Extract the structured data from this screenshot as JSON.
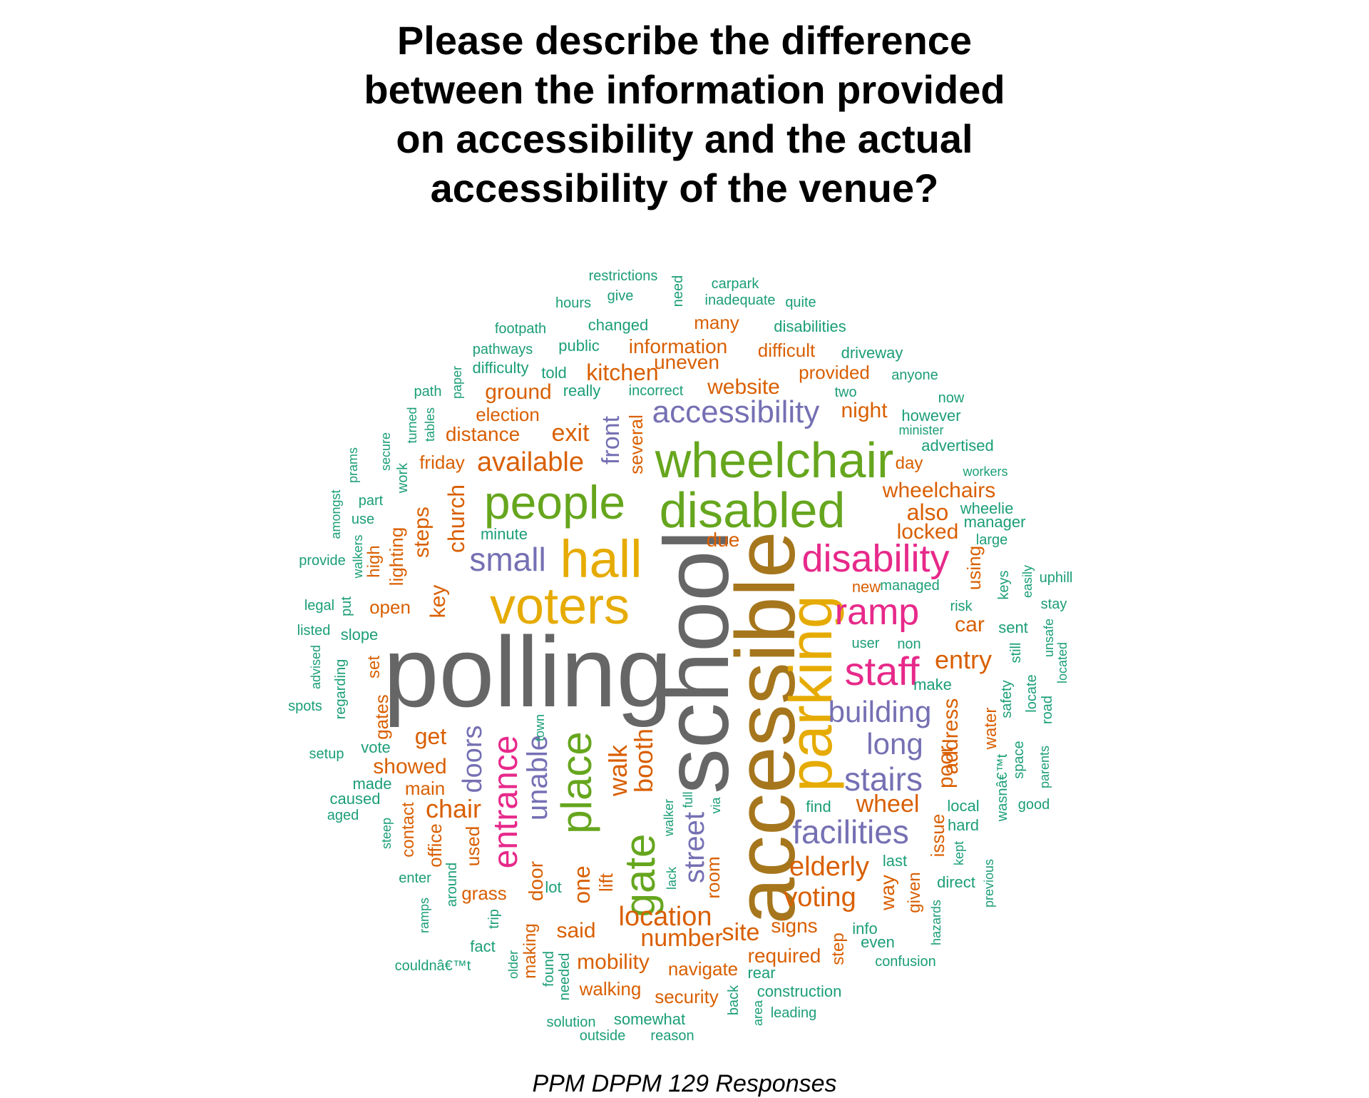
{
  "title_lines": [
    "Please describe the difference",
    "between the information provided",
    "on accessibility and the actual",
    "accessibility of the venue?"
  ],
  "caption": "PPM DPPM 129 Responses",
  "colors": {
    "gray": "#666666",
    "brown": "#A6761D",
    "gold": "#E6AB02",
    "green": "#66A61E",
    "purple": "#7570B3",
    "pink": "#E7298A",
    "orange": "#D95F02",
    "teal": "#1B9E77"
  },
  "words": [
    {
      "text": "polling",
      "color": "gray"
    },
    {
      "text": "school",
      "color": "gray"
    },
    {
      "text": "accessible",
      "color": "brown"
    },
    {
      "text": "parking",
      "color": "gold"
    },
    {
      "text": "hall",
      "color": "gold"
    },
    {
      "text": "voters",
      "color": "gold"
    },
    {
      "text": "wheelchair",
      "color": "green"
    },
    {
      "text": "disabled",
      "color": "green"
    },
    {
      "text": "people",
      "color": "green"
    },
    {
      "text": "place",
      "color": "green"
    },
    {
      "text": "gate",
      "color": "green"
    },
    {
      "text": "accessibility",
      "color": "purple"
    },
    {
      "text": "small",
      "color": "purple"
    },
    {
      "text": "building",
      "color": "purple"
    },
    {
      "text": "long",
      "color": "purple"
    },
    {
      "text": "stairs",
      "color": "purple"
    },
    {
      "text": "facilities",
      "color": "purple"
    },
    {
      "text": "front",
      "color": "purple"
    },
    {
      "text": "doors",
      "color": "purple"
    },
    {
      "text": "unable",
      "color": "purple"
    },
    {
      "text": "street",
      "color": "purple"
    },
    {
      "text": "disability",
      "color": "pink"
    },
    {
      "text": "ramp",
      "color": "pink"
    },
    {
      "text": "staff",
      "color": "pink"
    },
    {
      "text": "entrance",
      "color": "pink"
    },
    {
      "text": "exit",
      "color": "orange"
    },
    {
      "text": "available",
      "color": "orange"
    },
    {
      "text": "kitchen",
      "color": "orange"
    },
    {
      "text": "website",
      "color": "orange"
    },
    {
      "text": "night",
      "color": "orange"
    },
    {
      "text": "ground",
      "color": "orange"
    },
    {
      "text": "election",
      "color": "orange"
    },
    {
      "text": "distance",
      "color": "orange"
    },
    {
      "text": "friday",
      "color": "orange"
    },
    {
      "text": "information",
      "color": "orange"
    },
    {
      "text": "uneven",
      "color": "orange"
    },
    {
      "text": "difficult",
      "color": "orange"
    },
    {
      "text": "provided",
      "color": "orange"
    },
    {
      "text": "many",
      "color": "orange"
    },
    {
      "text": "several",
      "color": "orange"
    },
    {
      "text": "wheelchairs",
      "color": "orange"
    },
    {
      "text": "also",
      "color": "orange"
    },
    {
      "text": "locked",
      "color": "orange"
    },
    {
      "text": "day",
      "color": "orange"
    },
    {
      "text": "due",
      "color": "orange"
    },
    {
      "text": "steps",
      "color": "orange"
    },
    {
      "text": "church",
      "color": "orange"
    },
    {
      "text": "key",
      "color": "orange"
    },
    {
      "text": "lighting",
      "color": "orange"
    },
    {
      "text": "high",
      "color": "orange"
    },
    {
      "text": "open",
      "color": "orange"
    },
    {
      "text": "set",
      "color": "orange"
    },
    {
      "text": "using",
      "color": "orange"
    },
    {
      "text": "car",
      "color": "orange"
    },
    {
      "text": "entry",
      "color": "orange"
    },
    {
      "text": "address",
      "color": "orange"
    },
    {
      "text": "poor",
      "color": "orange"
    },
    {
      "text": "water",
      "color": "orange"
    },
    {
      "text": "wheel",
      "color": "orange"
    },
    {
      "text": "get",
      "color": "orange"
    },
    {
      "text": "showed",
      "color": "orange"
    },
    {
      "text": "main",
      "color": "orange"
    },
    {
      "text": "chair",
      "color": "orange"
    },
    {
      "text": "walk",
      "color": "orange"
    },
    {
      "text": "booth",
      "color": "orange"
    },
    {
      "text": "gates",
      "color": "orange"
    },
    {
      "text": "elderly",
      "color": "orange"
    },
    {
      "text": "voting",
      "color": "orange"
    },
    {
      "text": "location",
      "color": "orange"
    },
    {
      "text": "number",
      "color": "orange"
    },
    {
      "text": "site",
      "color": "orange"
    },
    {
      "text": "signs",
      "color": "orange"
    },
    {
      "text": "required",
      "color": "orange"
    },
    {
      "text": "navigate",
      "color": "orange"
    },
    {
      "text": "mobility",
      "color": "orange"
    },
    {
      "text": "walking",
      "color": "orange"
    },
    {
      "text": "security",
      "color": "orange"
    },
    {
      "text": "said",
      "color": "orange"
    },
    {
      "text": "one",
      "color": "orange"
    },
    {
      "text": "lift",
      "color": "orange"
    },
    {
      "text": "room",
      "color": "orange"
    },
    {
      "text": "door",
      "color": "orange"
    },
    {
      "text": "grass",
      "color": "orange"
    },
    {
      "text": "used",
      "color": "orange"
    },
    {
      "text": "contact",
      "color": "orange"
    },
    {
      "text": "office",
      "color": "orange"
    },
    {
      "text": "making",
      "color": "orange"
    },
    {
      "text": "issue",
      "color": "orange"
    },
    {
      "text": "way",
      "color": "orange"
    },
    {
      "text": "given",
      "color": "orange"
    },
    {
      "text": "step",
      "color": "orange"
    },
    {
      "text": "restrictions",
      "color": "teal"
    },
    {
      "text": "need",
      "color": "teal"
    },
    {
      "text": "carpark",
      "color": "teal"
    },
    {
      "text": "hours",
      "color": "teal"
    },
    {
      "text": "give",
      "color": "teal"
    },
    {
      "text": "inadequate",
      "color": "teal"
    },
    {
      "text": "quite",
      "color": "teal"
    },
    {
      "text": "footpath",
      "color": "teal"
    },
    {
      "text": "changed",
      "color": "teal"
    },
    {
      "text": "disabilities",
      "color": "teal"
    },
    {
      "text": "pathways",
      "color": "teal"
    },
    {
      "text": "public",
      "color": "teal"
    },
    {
      "text": "driveway",
      "color": "teal"
    },
    {
      "text": "difficulty",
      "color": "teal"
    },
    {
      "text": "told",
      "color": "teal"
    },
    {
      "text": "paper",
      "color": "teal"
    },
    {
      "text": "anyone",
      "color": "teal"
    },
    {
      "text": "path",
      "color": "teal"
    },
    {
      "text": "really",
      "color": "teal"
    },
    {
      "text": "incorrect",
      "color": "teal"
    },
    {
      "text": "two",
      "color": "teal"
    },
    {
      "text": "now",
      "color": "teal"
    },
    {
      "text": "tables",
      "color": "teal"
    },
    {
      "text": "turned",
      "color": "teal"
    },
    {
      "text": "however",
      "color": "teal"
    },
    {
      "text": "minister",
      "color": "teal"
    },
    {
      "text": "secure",
      "color": "teal"
    },
    {
      "text": "advertised",
      "color": "teal"
    },
    {
      "text": "prams",
      "color": "teal"
    },
    {
      "text": "work",
      "color": "teal"
    },
    {
      "text": "workers",
      "color": "teal"
    },
    {
      "text": "amongst",
      "color": "teal"
    },
    {
      "text": "part",
      "color": "teal"
    },
    {
      "text": "wheelie",
      "color": "teal"
    },
    {
      "text": "manager",
      "color": "teal"
    },
    {
      "text": "use",
      "color": "teal"
    },
    {
      "text": "minute",
      "color": "teal"
    },
    {
      "text": "large",
      "color": "teal"
    },
    {
      "text": "provide",
      "color": "teal"
    },
    {
      "text": "walkers",
      "color": "teal"
    },
    {
      "text": "keys",
      "color": "teal"
    },
    {
      "text": "easily",
      "color": "teal"
    },
    {
      "text": "uphill",
      "color": "teal"
    },
    {
      "text": "new",
      "color": "orange"
    },
    {
      "text": "managed",
      "color": "teal"
    },
    {
      "text": "legal",
      "color": "teal"
    },
    {
      "text": "put",
      "color": "teal"
    },
    {
      "text": "risk",
      "color": "teal"
    },
    {
      "text": "stay",
      "color": "teal"
    },
    {
      "text": "listed",
      "color": "teal"
    },
    {
      "text": "slope",
      "color": "teal"
    },
    {
      "text": "sent",
      "color": "teal"
    },
    {
      "text": "user",
      "color": "teal"
    },
    {
      "text": "non",
      "color": "teal"
    },
    {
      "text": "unsafe",
      "color": "teal"
    },
    {
      "text": "located",
      "color": "teal"
    },
    {
      "text": "advised",
      "color": "teal"
    },
    {
      "text": "still",
      "color": "teal"
    },
    {
      "text": "regarding",
      "color": "teal"
    },
    {
      "text": "make",
      "color": "teal"
    },
    {
      "text": "locate",
      "color": "teal"
    },
    {
      "text": "spots",
      "color": "teal"
    },
    {
      "text": "safety",
      "color": "teal"
    },
    {
      "text": "road",
      "color": "teal"
    },
    {
      "text": "town",
      "color": "teal"
    },
    {
      "text": "setup",
      "color": "teal"
    },
    {
      "text": "vote",
      "color": "teal"
    },
    {
      "text": "space",
      "color": "teal"
    },
    {
      "text": "parents",
      "color": "teal"
    },
    {
      "text": "made",
      "color": "teal"
    },
    {
      "text": "wasnâ€™t",
      "color": "teal"
    },
    {
      "text": "caused",
      "color": "teal"
    },
    {
      "text": "full",
      "color": "teal"
    },
    {
      "text": "walker",
      "color": "teal"
    },
    {
      "text": "via",
      "color": "teal"
    },
    {
      "text": "find",
      "color": "teal"
    },
    {
      "text": "local",
      "color": "teal"
    },
    {
      "text": "good",
      "color": "teal"
    },
    {
      "text": "aged",
      "color": "teal"
    },
    {
      "text": "steep",
      "color": "teal"
    },
    {
      "text": "hard",
      "color": "teal"
    },
    {
      "text": "kept",
      "color": "teal"
    },
    {
      "text": "lack",
      "color": "teal"
    },
    {
      "text": "last",
      "color": "teal"
    },
    {
      "text": "enter",
      "color": "teal"
    },
    {
      "text": "around",
      "color": "teal"
    },
    {
      "text": "direct",
      "color": "teal"
    },
    {
      "text": "previous",
      "color": "teal"
    },
    {
      "text": "lot",
      "color": "teal"
    },
    {
      "text": "ramps",
      "color": "teal"
    },
    {
      "text": "hazards",
      "color": "teal"
    },
    {
      "text": "trip",
      "color": "teal"
    },
    {
      "text": "info",
      "color": "teal"
    },
    {
      "text": "fact",
      "color": "teal"
    },
    {
      "text": "even",
      "color": "teal"
    },
    {
      "text": "older",
      "color": "teal"
    },
    {
      "text": "found",
      "color": "teal"
    },
    {
      "text": "needed",
      "color": "teal"
    },
    {
      "text": "rear",
      "color": "teal"
    },
    {
      "text": "confusion",
      "color": "teal"
    },
    {
      "text": "couldnâ€™t",
      "color": "teal"
    },
    {
      "text": "back",
      "color": "teal"
    },
    {
      "text": "construction",
      "color": "teal"
    },
    {
      "text": "area",
      "color": "teal"
    },
    {
      "text": "leading",
      "color": "teal"
    },
    {
      "text": "solution",
      "color": "teal"
    },
    {
      "text": "somewhat",
      "color": "teal"
    },
    {
      "text": "outside",
      "color": "teal"
    },
    {
      "text": "reason",
      "color": "teal"
    }
  ]
}
